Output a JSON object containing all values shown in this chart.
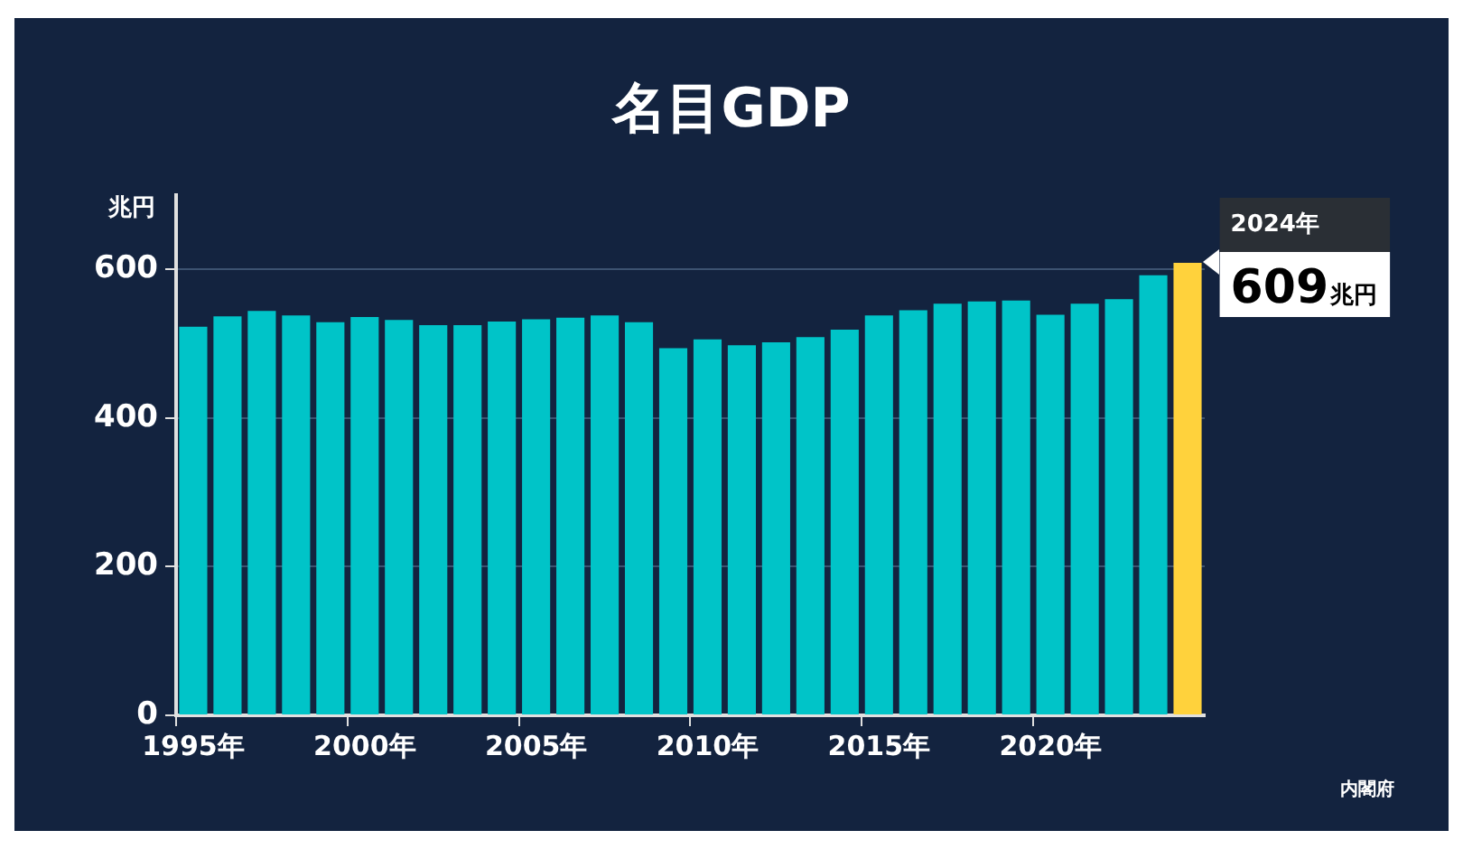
{
  "chart_data": {
    "type": "bar",
    "title": "名目GDP",
    "ylabel": "兆円",
    "categories": [
      "1995年",
      null,
      null,
      null,
      null,
      "2000年",
      null,
      null,
      null,
      null,
      "2005年",
      null,
      null,
      null,
      null,
      "2010年",
      null,
      null,
      null,
      null,
      "2015年",
      null,
      null,
      null,
      null,
      "2020年",
      null,
      null,
      null,
      null
    ],
    "values": [
      523,
      537,
      544,
      538,
      529,
      536,
      532,
      525,
      525,
      530,
      533,
      535,
      538,
      529,
      494,
      506,
      498,
      502,
      509,
      519,
      538,
      545,
      554,
      557,
      558,
      539,
      554,
      560,
      592,
      609
    ],
    "colors": [
      "#00c4c8",
      "#00c4c8",
      "#00c4c8",
      "#00c4c8",
      "#00c4c8",
      "#00c4c8",
      "#00c4c8",
      "#00c4c8",
      "#00c4c8",
      "#00c4c8",
      "#00c4c8",
      "#00c4c8",
      "#00c4c8",
      "#00c4c8",
      "#00c4c8",
      "#00c4c8",
      "#00c4c8",
      "#00c4c8",
      "#00c4c8",
      "#00c4c8",
      "#00c4c8",
      "#00c4c8",
      "#00c4c8",
      "#00c4c8",
      "#00c4c8",
      "#00c4c8",
      "#00c4c8",
      "#00c4c8",
      "#00c4c8",
      "#ffd23c"
    ],
    "value_labels": [
      null,
      null,
      null,
      null,
      null,
      null,
      null,
      null,
      null,
      null,
      null,
      null,
      null,
      null,
      null,
      null,
      null,
      null,
      null,
      null,
      null,
      null,
      null,
      null,
      null,
      null,
      null,
      null,
      null,
      "609兆円"
    ],
    "annotations": [
      "2024年",
      "内閣府"
    ],
    "ylim": [
      0,
      700
    ],
    "yticks": [
      0,
      200,
      400,
      600
    ],
    "grid": "y",
    "legend": false
  }
}
